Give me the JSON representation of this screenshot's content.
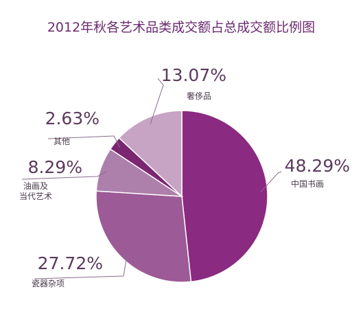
{
  "chart_data": {
    "type": "pie",
    "title": "2012年秋各艺术品类成交额占总成交额比例图",
    "slices": [
      {
        "label": "中国书画",
        "label_lines": [
          "中国书画"
        ],
        "value": 48.29,
        "display": "48.29%",
        "color": "#8a2a80"
      },
      {
        "label": "瓷器杂项",
        "label_lines": [
          "瓷器杂项"
        ],
        "value": 27.72,
        "display": "27.72%",
        "color": "#9c5a96"
      },
      {
        "label": "油画及当代艺术",
        "label_lines": [
          "油画及",
          "当代艺术"
        ],
        "value": 8.29,
        "display": "8.29%",
        "color": "#ad7fab"
      },
      {
        "label": "其他",
        "label_lines": [
          "其他"
        ],
        "value": 2.63,
        "display": "2.63%",
        "color": "#7a2670"
      },
      {
        "label": "奢侈品",
        "label_lines": [
          "奢侈品"
        ],
        "value": 13.07,
        "display": "13.07%",
        "color": "#c7a4c4"
      }
    ]
  }
}
